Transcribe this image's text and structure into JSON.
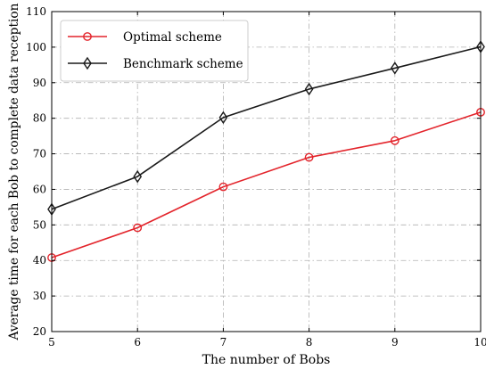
{
  "chart_data": {
    "type": "line",
    "xlabel": "The number of Bobs",
    "ylabel": "Average time for each Bob to complete data reception",
    "x": [
      5,
      6,
      7,
      8,
      9,
      10
    ],
    "xlim": [
      5,
      10
    ],
    "ylim": [
      20,
      110
    ],
    "xticks": [
      5,
      6,
      7,
      8,
      9,
      10
    ],
    "yticks": [
      20,
      30,
      40,
      50,
      60,
      70,
      80,
      90,
      100,
      110
    ],
    "grid": true,
    "legend_position": "top-left",
    "series": [
      {
        "name": "Optimal scheme",
        "values": [
          40.8,
          49.2,
          60.7,
          69.0,
          73.7,
          81.7
        ],
        "color": "#e3242b",
        "marker": "circle-open"
      },
      {
        "name": "Benchmark scheme",
        "values": [
          54.4,
          63.6,
          80.2,
          88.2,
          94.1,
          100.1
        ],
        "color": "#1a1a1a",
        "marker": "diamond-open"
      }
    ]
  }
}
